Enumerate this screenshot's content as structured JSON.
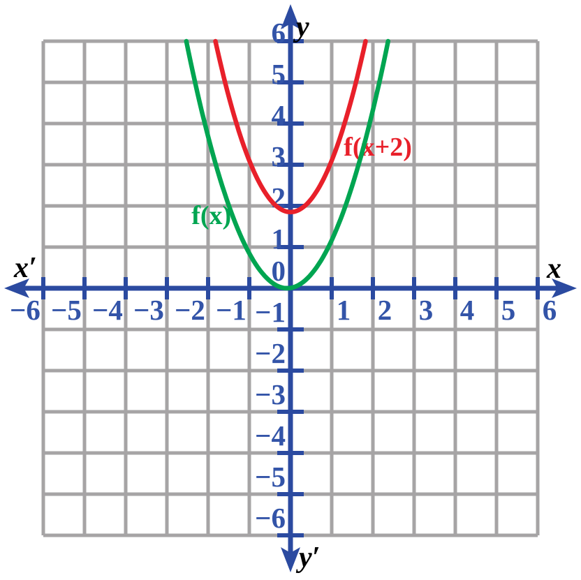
{
  "palette": {
    "background": "#ffffff",
    "axis_blue": "#2b4aa0",
    "tick_label_blue": "#3354a8",
    "grid_gray": "#a6a4a5",
    "green": "#00a551",
    "red": "#e8202a",
    "black": "#000000"
  },
  "chart_data": {
    "type": "line",
    "subtype": "function-plot",
    "title": "",
    "description": "Two upward parabolas on a square grid: green f(x) with vertex at the origin, red f(x+2) with vertex near (0,2), both drawn up to y = 6.",
    "axes": {
      "x_label": "x",
      "x_prime_label": "x′",
      "y_label": "y",
      "y_prime_label": "y′",
      "xlim": [
        -6,
        6
      ],
      "ylim": [
        -6,
        6
      ],
      "grid": true,
      "grid_step": 1,
      "x_ticks": [
        -6,
        -5,
        -4,
        -3,
        -2,
        -1,
        1,
        2,
        3,
        4,
        5,
        6
      ],
      "y_ticks": [
        6,
        5,
        4,
        3,
        2,
        1,
        0,
        -1,
        -2,
        -3,
        -4,
        -5,
        -6
      ]
    },
    "series": [
      {
        "name": "f(x)",
        "label": "f(x)",
        "color": "#00a551",
        "shape": "parabola",
        "a": 1.0,
        "h": -0.08,
        "k": 0,
        "vertex": [
          -0.08,
          0
        ],
        "y_max_drawn": 6,
        "label_pos": [
          -1.92,
          1.78
        ]
      },
      {
        "name": "f(x+2)",
        "label": "f(x+2)",
        "color": "#e8202a",
        "shape": "parabola",
        "a": 1.25,
        "h": 0,
        "k": 1.85,
        "vertex": [
          0,
          1.85
        ],
        "y_max_drawn": 6,
        "label_pos": [
          2.12,
          3.44
        ]
      }
    ]
  }
}
